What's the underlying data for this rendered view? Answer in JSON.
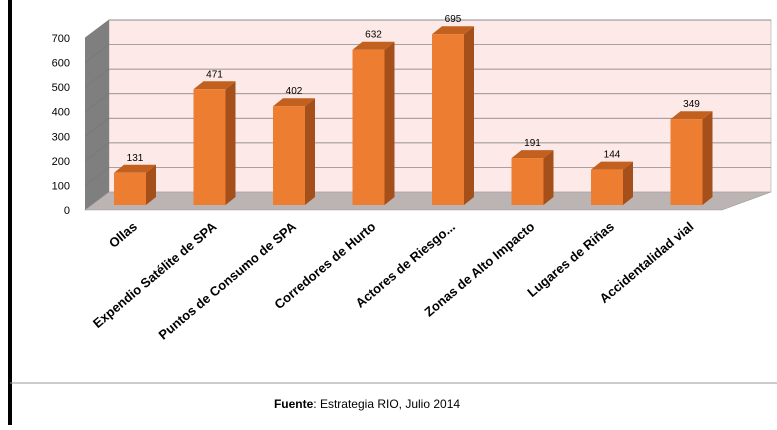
{
  "chart_data": {
    "type": "bar3d",
    "categories": [
      "Ollas",
      "Expendio Satélite de SPA",
      "Puntos de Consumo de SPA",
      "Corredores de Hurto",
      "Actores de Riesgo...",
      "Zonas de Alto Impacto",
      "Lugares de Riñas",
      "Accidentalidad vial"
    ],
    "values": [
      131,
      471,
      402,
      632,
      695,
      191,
      144,
      349
    ],
    "color": "#ed7d31",
    "ylim": [
      0,
      700
    ],
    "yticks": [
      0,
      100,
      200,
      300,
      400,
      500,
      600,
      700
    ],
    "grid": true
  },
  "source": {
    "label": "Fuente",
    "text": ": Estrategia RIO, Julio 2014"
  }
}
